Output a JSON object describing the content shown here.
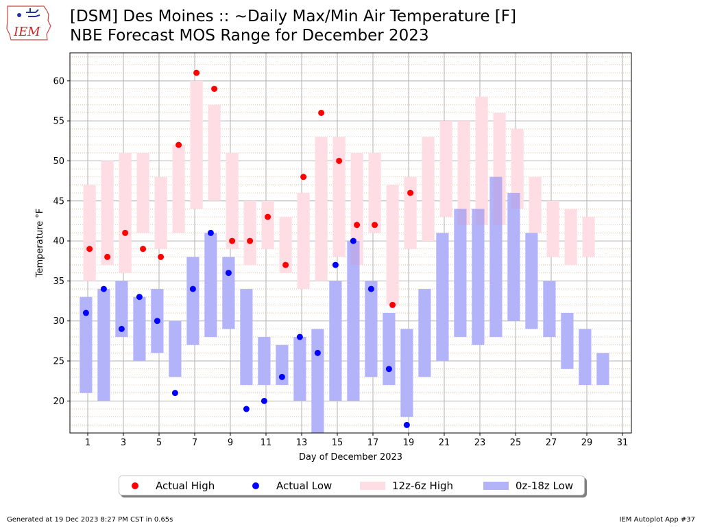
{
  "title_line1": "[DSM] Des Moines :: ~Daily Max/Min Air Temperature [F]",
  "title_line2": "NBE Forecast MOS Range for December 2023",
  "logo_text": "IEM",
  "footer_left": "Generated at 19 Dec 2023 8:27 PM CST in 0.65s",
  "footer_right": "IEM Autoplot App #37",
  "colors": {
    "actual_high": "#ff0000",
    "actual_low": "#0000ff",
    "high_range": "#ffdde4",
    "low_range": "#b3b3fa",
    "overlap": "#b9abec"
  },
  "chart_data": {
    "type": "bar",
    "xlabel": "Day of December 2023",
    "ylabel": "Temperature °F",
    "xlim": [
      0,
      31.5
    ],
    "ylim": [
      16,
      63.5
    ],
    "x_ticks": [
      1,
      3,
      5,
      7,
      9,
      11,
      13,
      15,
      17,
      19,
      21,
      23,
      25,
      27,
      29,
      31
    ],
    "y_ticks": [
      20,
      25,
      30,
      35,
      40,
      45,
      50,
      55,
      60
    ],
    "grid": true,
    "legend_position": "below-center",
    "legend": [
      "Actual High",
      "Actual Low",
      "12z-6z High",
      "0z-18z Low"
    ],
    "high_range": [
      {
        "day": 1,
        "low": 35,
        "high": 47
      },
      {
        "day": 2,
        "low": 37,
        "high": 50
      },
      {
        "day": 3,
        "low": 36,
        "high": 51
      },
      {
        "day": 4,
        "low": 41,
        "high": 51
      },
      {
        "day": 5,
        "low": 39,
        "high": 48
      },
      {
        "day": 6,
        "low": 41,
        "high": 52
      },
      {
        "day": 7,
        "low": 44,
        "high": 60
      },
      {
        "day": 8,
        "low": 45,
        "high": 57
      },
      {
        "day": 9,
        "low": 39,
        "high": 51
      },
      {
        "day": 10,
        "low": 37,
        "high": 45
      },
      {
        "day": 11,
        "low": 39,
        "high": 45
      },
      {
        "day": 12,
        "low": 36,
        "high": 43
      },
      {
        "day": 13,
        "low": 34,
        "high": 46
      },
      {
        "day": 14,
        "low": 35,
        "high": 53
      },
      {
        "day": 15,
        "low": 38,
        "high": 53
      },
      {
        "day": 16,
        "low": 37,
        "high": 51
      },
      {
        "day": 17,
        "low": 41,
        "high": 51
      },
      {
        "day": 18,
        "low": 32,
        "high": 47
      },
      {
        "day": 19,
        "low": 39,
        "high": 48
      },
      {
        "day": 20,
        "low": 40,
        "high": 53
      },
      {
        "day": 21,
        "low": 43,
        "high": 55
      },
      {
        "day": 22,
        "low": 42,
        "high": 55
      },
      {
        "day": 23,
        "low": 42,
        "high": 58
      },
      {
        "day": 24,
        "low": 42,
        "high": 56
      },
      {
        "day": 25,
        "low": 44,
        "high": 54
      },
      {
        "day": 26,
        "low": 41,
        "high": 48
      },
      {
        "day": 27,
        "low": 38,
        "high": 45
      },
      {
        "day": 28,
        "low": 37,
        "high": 44
      },
      {
        "day": 29,
        "low": 38,
        "high": 43
      }
    ],
    "low_range": [
      {
        "day": 1,
        "low": 21,
        "high": 33
      },
      {
        "day": 2,
        "low": 20,
        "high": 34
      },
      {
        "day": 3,
        "low": 28,
        "high": 35
      },
      {
        "day": 4,
        "low": 25,
        "high": 33
      },
      {
        "day": 5,
        "low": 26,
        "high": 34
      },
      {
        "day": 6,
        "low": 23,
        "high": 30
      },
      {
        "day": 7,
        "low": 27,
        "high": 38
      },
      {
        "day": 8,
        "low": 28,
        "high": 41
      },
      {
        "day": 9,
        "low": 29,
        "high": 38
      },
      {
        "day": 10,
        "low": 22,
        "high": 34
      },
      {
        "day": 11,
        "low": 22,
        "high": 28
      },
      {
        "day": 12,
        "low": 22,
        "high": 27
      },
      {
        "day": 13,
        "low": 20,
        "high": 28
      },
      {
        "day": 14,
        "low": 16,
        "high": 29
      },
      {
        "day": 15,
        "low": 20,
        "high": 35
      },
      {
        "day": 16,
        "low": 20,
        "high": 40
      },
      {
        "day": 17,
        "low": 23,
        "high": 35
      },
      {
        "day": 18,
        "low": 22,
        "high": 31
      },
      {
        "day": 19,
        "low": 18,
        "high": 29
      },
      {
        "day": 20,
        "low": 23,
        "high": 34
      },
      {
        "day": 21,
        "low": 25,
        "high": 41
      },
      {
        "day": 22,
        "low": 28,
        "high": 44
      },
      {
        "day": 23,
        "low": 27,
        "high": 44
      },
      {
        "day": 24,
        "low": 28,
        "high": 48
      },
      {
        "day": 25,
        "low": 30,
        "high": 46
      },
      {
        "day": 26,
        "low": 29,
        "high": 41
      },
      {
        "day": 27,
        "low": 28,
        "high": 35
      },
      {
        "day": 28,
        "low": 24,
        "high": 31
      },
      {
        "day": 29,
        "low": 22,
        "high": 29
      },
      {
        "day": 30,
        "low": 22,
        "high": 26
      }
    ],
    "actual_high": [
      {
        "day": 1,
        "value": 39
      },
      {
        "day": 2,
        "value": 38
      },
      {
        "day": 3,
        "value": 41
      },
      {
        "day": 4,
        "value": 39
      },
      {
        "day": 5,
        "value": 38
      },
      {
        "day": 6,
        "value": 52
      },
      {
        "day": 7,
        "value": 61
      },
      {
        "day": 8,
        "value": 59
      },
      {
        "day": 9,
        "value": 40
      },
      {
        "day": 10,
        "value": 40
      },
      {
        "day": 11,
        "value": 43
      },
      {
        "day": 12,
        "value": 37
      },
      {
        "day": 13,
        "value": 48
      },
      {
        "day": 14,
        "value": 56
      },
      {
        "day": 15,
        "value": 50
      },
      {
        "day": 16,
        "value": 42
      },
      {
        "day": 17,
        "value": 42
      },
      {
        "day": 18,
        "value": 32
      },
      {
        "day": 19,
        "value": 46
      }
    ],
    "actual_low": [
      {
        "day": 1,
        "value": 31
      },
      {
        "day": 2,
        "value": 34
      },
      {
        "day": 3,
        "value": 29
      },
      {
        "day": 4,
        "value": 33
      },
      {
        "day": 5,
        "value": 30
      },
      {
        "day": 6,
        "value": 21
      },
      {
        "day": 7,
        "value": 34
      },
      {
        "day": 8,
        "value": 41
      },
      {
        "day": 9,
        "value": 36
      },
      {
        "day": 10,
        "value": 19
      },
      {
        "day": 11,
        "value": 20
      },
      {
        "day": 12,
        "value": 23
      },
      {
        "day": 13,
        "value": 28
      },
      {
        "day": 14,
        "value": 26
      },
      {
        "day": 15,
        "value": 37
      },
      {
        "day": 16,
        "value": 40
      },
      {
        "day": 17,
        "value": 34
      },
      {
        "day": 18,
        "value": 24
      },
      {
        "day": 19,
        "value": 17
      }
    ]
  }
}
